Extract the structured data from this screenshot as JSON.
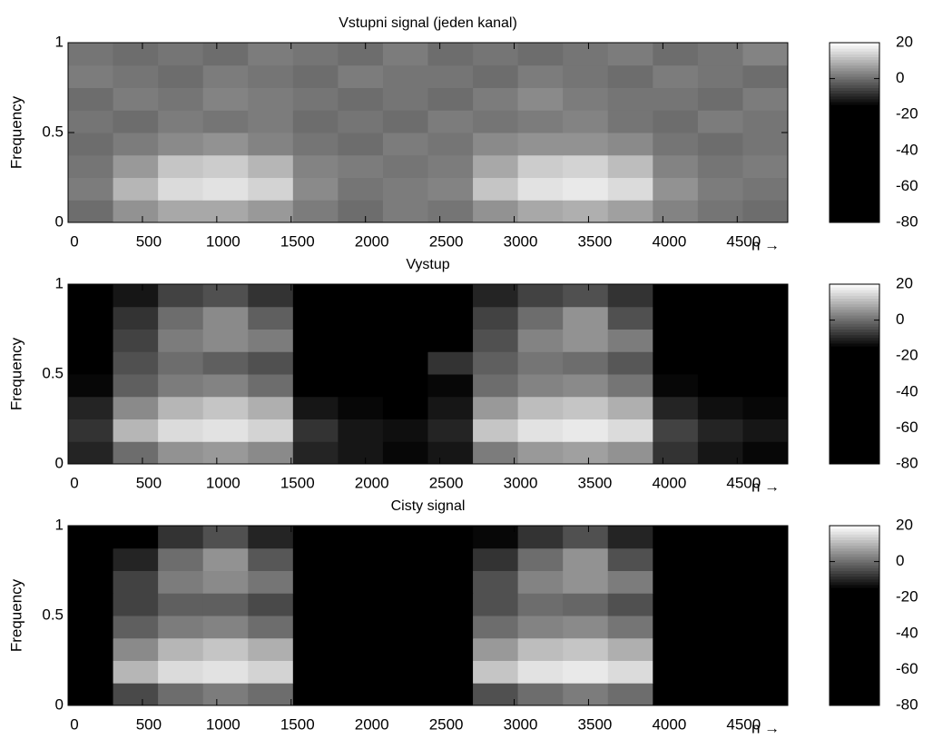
{
  "chart_data": [
    {
      "type": "heatmap",
      "title": "Vstupni signal (jeden kanal)",
      "ylabel": "Frequency",
      "xlabel": "n →",
      "xlim": [
        0,
        4840
      ],
      "xticks": [
        0,
        500,
        1000,
        1500,
        2000,
        2500,
        3000,
        3500,
        4000,
        4500
      ],
      "ylim": [
        0,
        1
      ],
      "yticks": [
        0,
        0.5,
        1
      ],
      "zlim": [
        -80,
        20
      ],
      "zticks": [
        20,
        0,
        -20,
        -40,
        -60,
        -80
      ],
      "values": [
        [
          0,
          5,
          8,
          8,
          6,
          2,
          0,
          2,
          1,
          5,
          8,
          9,
          7,
          3,
          1,
          0
        ],
        [
          2,
          10,
          15,
          16,
          14,
          4,
          1,
          2,
          3,
          12,
          16,
          17,
          15,
          5,
          2,
          1
        ],
        [
          1,
          6,
          12,
          13,
          10,
          3,
          2,
          1,
          2,
          8,
          13,
          14,
          11,
          3,
          1,
          2
        ],
        [
          0,
          2,
          4,
          5,
          3,
          1,
          0,
          2,
          1,
          4,
          5,
          5,
          4,
          1,
          0,
          1
        ],
        [
          1,
          0,
          2,
          1,
          2,
          0,
          1,
          0,
          2,
          1,
          2,
          3,
          1,
          0,
          2,
          1
        ],
        [
          0,
          2,
          1,
          3,
          2,
          1,
          0,
          1,
          0,
          2,
          4,
          2,
          1,
          1,
          0,
          2
        ],
        [
          2,
          1,
          0,
          2,
          1,
          0,
          2,
          1,
          1,
          0,
          2,
          1,
          0,
          2,
          1,
          0
        ],
        [
          1,
          0,
          1,
          0,
          2,
          1,
          0,
          2,
          0,
          1,
          0,
          1,
          2,
          0,
          1,
          3
        ]
      ]
    },
    {
      "type": "heatmap",
      "title": "Vystup",
      "ylabel": "Frequency",
      "xlabel": "n →",
      "xlim": [
        0,
        4840
      ],
      "xticks": [
        0,
        500,
        1000,
        1500,
        2000,
        2500,
        3000,
        3500,
        4000,
        4500
      ],
      "ylim": [
        0,
        1
      ],
      "yticks": [
        0,
        0.5,
        1
      ],
      "zlim": [
        -80,
        20
      ],
      "zticks": [
        20,
        0,
        -20,
        -40,
        -60,
        -80
      ],
      "values": [
        [
          -10,
          0,
          5,
          6,
          4,
          -10,
          -12,
          -14,
          -12,
          2,
          6,
          7,
          5,
          -8,
          -12,
          -14
        ],
        [
          -8,
          10,
          15,
          16,
          14,
          -8,
          -12,
          -13,
          -10,
          12,
          16,
          17,
          15,
          -6,
          -10,
          -12
        ],
        [
          -10,
          4,
          10,
          12,
          9,
          -12,
          -14,
          -15,
          -12,
          6,
          11,
          12,
          9,
          -10,
          -13,
          -14
        ],
        [
          -14,
          -2,
          2,
          3,
          0,
          -16,
          -18,
          -18,
          -14,
          0,
          3,
          4,
          1,
          -14,
          -16,
          -16
        ],
        [
          -16,
          -4,
          0,
          -2,
          -4,
          -18,
          -20,
          -20,
          -8,
          -2,
          1,
          0,
          -3,
          -16,
          -18,
          -18
        ],
        [
          -18,
          -6,
          2,
          4,
          2,
          -20,
          -22,
          -22,
          -16,
          -4,
          3,
          5,
          2,
          -18,
          -20,
          -20
        ],
        [
          -20,
          -8,
          0,
          4,
          -2,
          -22,
          -24,
          -24,
          -18,
          -6,
          0,
          5,
          -4,
          -22,
          -22,
          -22
        ],
        [
          -22,
          -12,
          -6,
          -4,
          -8,
          -24,
          -25,
          -25,
          -20,
          -10,
          -6,
          -4,
          -8,
          -24,
          -24,
          -24
        ]
      ]
    },
    {
      "type": "heatmap",
      "title": "Cisty signal",
      "ylabel": "Frequency",
      "xlabel": "n →",
      "xlim": [
        0,
        4840
      ],
      "xticks": [
        0,
        500,
        1000,
        1500,
        2000,
        2500,
        3000,
        3500,
        4000,
        4500
      ],
      "ylim": [
        0,
        1
      ],
      "yticks": [
        0,
        0.5,
        1
      ],
      "zlim": [
        -80,
        20
      ],
      "zticks": [
        20,
        0,
        -20,
        -40,
        -60,
        -80
      ],
      "values": [
        [
          -30,
          -5,
          0,
          2,
          0,
          -25,
          -40,
          -40,
          -30,
          -4,
          0,
          2,
          0,
          -25,
          -35,
          -40
        ],
        [
          -40,
          10,
          15,
          16,
          14,
          -30,
          -50,
          -50,
          -40,
          12,
          16,
          17,
          15,
          -28,
          -40,
          -45
        ],
        [
          -50,
          4,
          10,
          12,
          9,
          -45,
          -60,
          -60,
          -55,
          6,
          11,
          12,
          9,
          -40,
          -55,
          -60
        ],
        [
          -55,
          -2,
          2,
          3,
          0,
          -50,
          -65,
          -65,
          -60,
          0,
          3,
          4,
          1,
          -50,
          -60,
          -65
        ],
        [
          -55,
          -6,
          -2,
          -2,
          -5,
          -55,
          -65,
          -65,
          -60,
          -4,
          0,
          -1,
          -4,
          -55,
          -65,
          -65
        ],
        [
          -55,
          -6,
          2,
          4,
          1,
          -55,
          -65,
          -65,
          -60,
          -4,
          3,
          5,
          2,
          -55,
          -65,
          -65
        ],
        [
          -60,
          -10,
          0,
          5,
          -3,
          -60,
          -70,
          -70,
          -65,
          -8,
          0,
          5,
          -4,
          -60,
          -70,
          -70
        ],
        [
          -60,
          -15,
          -8,
          -4,
          -10,
          -60,
          -70,
          -70,
          -65,
          -14,
          -8,
          -4,
          -10,
          -60,
          -70,
          -70
        ]
      ]
    }
  ]
}
